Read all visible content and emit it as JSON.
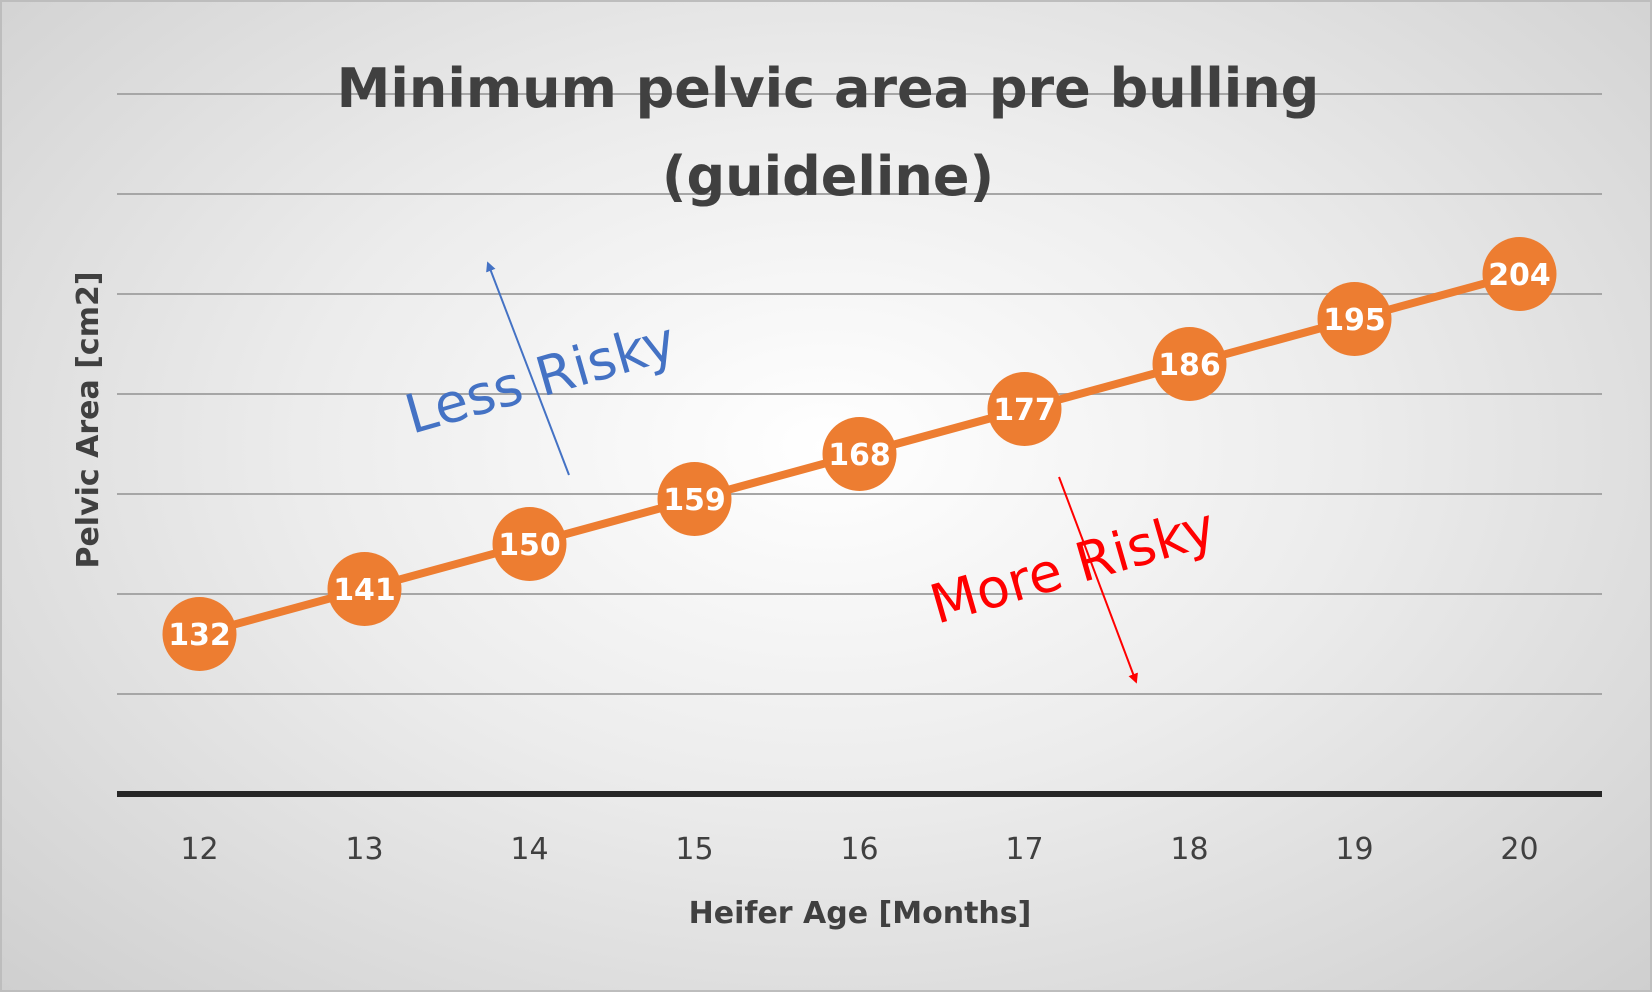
{
  "chart_data": {
    "type": "line",
    "title_lines": [
      "Minimum pelvic area pre bulling",
      "(guideline)"
    ],
    "xlabel": "Heifer Age [Months]",
    "ylabel": "Pelvic Area [cm2]",
    "categories": [
      "12",
      "13",
      "14",
      "15",
      "16",
      "17",
      "18",
      "19",
      "20"
    ],
    "series": [
      {
        "values": [
          132,
          141,
          150,
          159,
          168,
          177,
          186,
          195,
          204
        ]
      }
    ],
    "ylim": [
      100,
      240
    ],
    "y_gridline_step": 20,
    "y_tick_labels_shown": false,
    "grid": true,
    "legend": "none",
    "series_color": "#ed7d31",
    "annotations": [
      {
        "text": "Less Risky",
        "color": "#4472c4",
        "arrow": "up"
      },
      {
        "text": "More Risky",
        "color": "#ff0000",
        "arrow": "down"
      }
    ]
  }
}
